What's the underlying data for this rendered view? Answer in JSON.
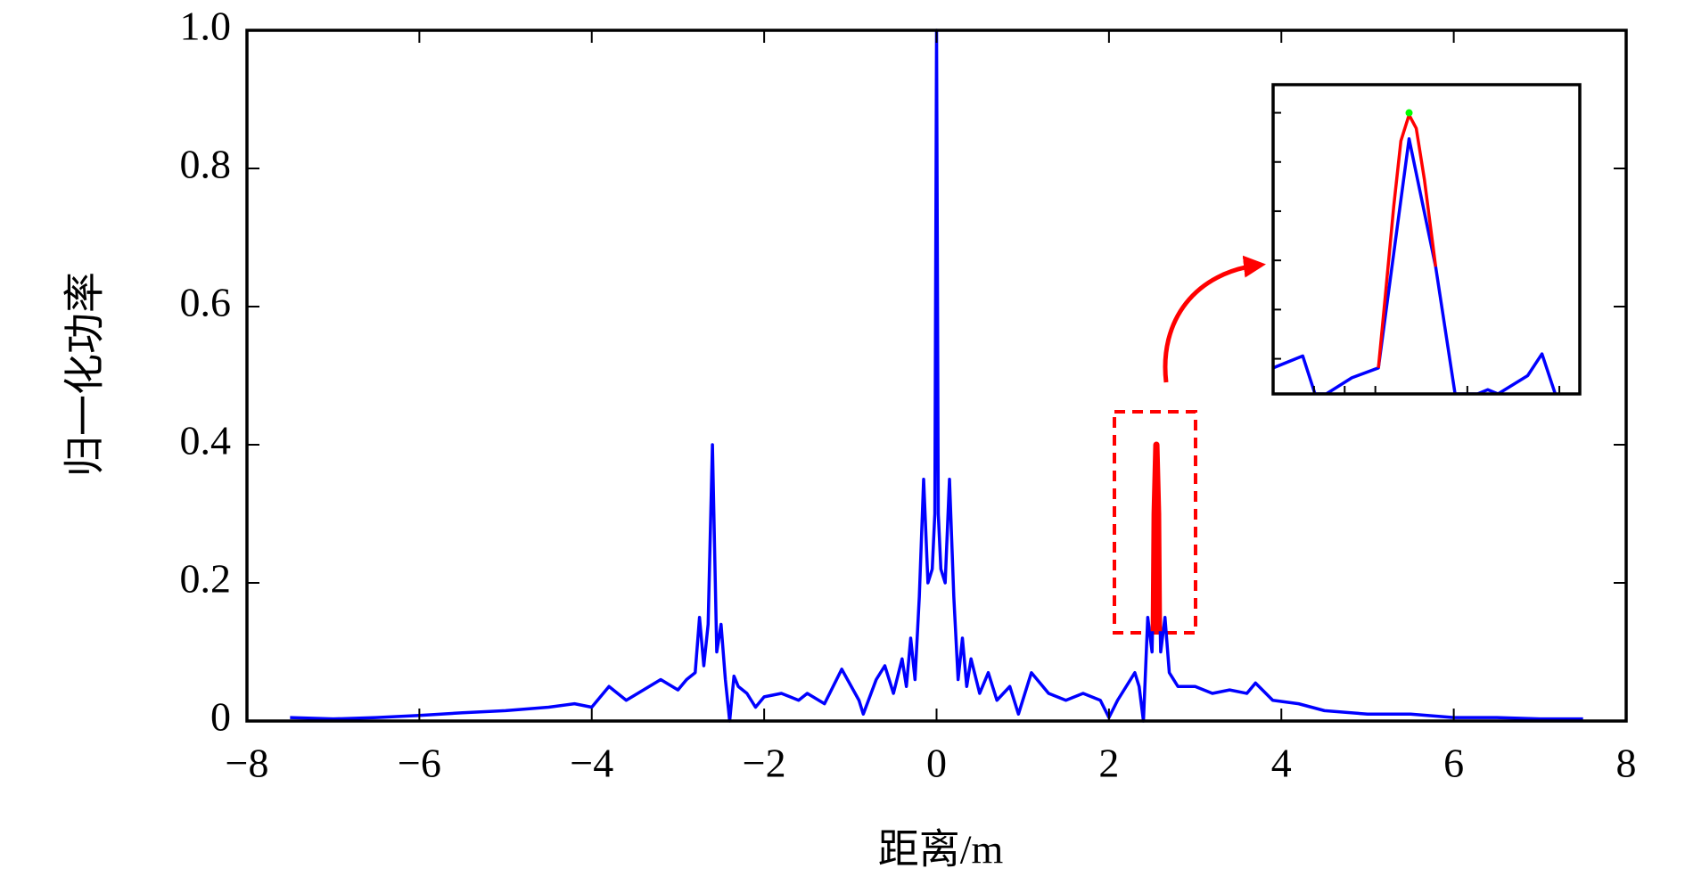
{
  "chart_data": [
    {
      "type": "line",
      "xlabel": "距离/m",
      "ylabel": "归一化功率",
      "xlim": [
        -8,
        8
      ],
      "ylim": [
        0,
        1
      ],
      "xticks": [
        {
          "value": -8,
          "label": "−8"
        },
        {
          "value": -6,
          "label": "−6"
        },
        {
          "value": -4,
          "label": "−4"
        },
        {
          "value": -2,
          "label": "−2"
        },
        0,
        2,
        4,
        6,
        8
      ],
      "yticks": [
        0,
        0.2,
        0.4,
        0.6,
        0.8,
        {
          "value": 1,
          "label": "1.0"
        }
      ],
      "series": [
        {
          "color": "#0000ff",
          "x": [
            -7.5,
            -7,
            -6.5,
            -6,
            -5.5,
            -5,
            -4.5,
            -4.2,
            -4,
            -3.8,
            -3.6,
            -3.4,
            -3.2,
            -3.0,
            -2.9,
            -2.8,
            -2.75,
            -2.7,
            -2.65,
            -2.6,
            -2.55,
            -2.5,
            -2.45,
            -2.4,
            -2.35,
            -2.3,
            -2.2,
            -2.1,
            -2.0,
            -1.8,
            -1.6,
            -1.5,
            -1.3,
            -1.1,
            -0.9,
            -0.85,
            -0.7,
            -0.6,
            -0.5,
            -0.4,
            -0.35,
            -0.3,
            -0.25,
            -0.2,
            -0.15,
            -0.1,
            -0.05,
            -0.02,
            0,
            0.02,
            0.05,
            0.1,
            0.15,
            0.2,
            0.25,
            0.3,
            0.35,
            0.4,
            0.5,
            0.6,
            0.7,
            0.85,
            0.95,
            1.1,
            1.3,
            1.5,
            1.7,
            1.9,
            2.0,
            2.1,
            2.2,
            2.3,
            2.35,
            2.4,
            2.45,
            2.5,
            2.55,
            2.6,
            2.65,
            2.7,
            2.8,
            3.0,
            3.2,
            3.4,
            3.6,
            3.7,
            3.9,
            4.2,
            4.5,
            5,
            5.5,
            6,
            6.5,
            7,
            7.5
          ],
          "values": [
            0.005,
            0.003,
            0.005,
            0.008,
            0.012,
            0.015,
            0.02,
            0.025,
            0.02,
            0.05,
            0.03,
            0.045,
            0.06,
            0.045,
            0.06,
            0.07,
            0.15,
            0.08,
            0.14,
            0.4,
            0.1,
            0.14,
            0.06,
            0.0,
            0.065,
            0.05,
            0.04,
            0.02,
            0.035,
            0.04,
            0.03,
            0.04,
            0.025,
            0.075,
            0.03,
            0.01,
            0.06,
            0.08,
            0.04,
            0.09,
            0.05,
            0.12,
            0.06,
            0.18,
            0.35,
            0.2,
            0.22,
            0.3,
            1.0,
            0.3,
            0.22,
            0.2,
            0.35,
            0.18,
            0.06,
            0.12,
            0.05,
            0.09,
            0.04,
            0.07,
            0.03,
            0.05,
            0.01,
            0.07,
            0.04,
            0.03,
            0.04,
            0.03,
            0.005,
            0.03,
            0.05,
            0.07,
            0.05,
            0.0,
            0.15,
            0.1,
            0.4,
            0.1,
            0.15,
            0.07,
            0.05,
            0.05,
            0.04,
            0.045,
            0.04,
            0.055,
            0.03,
            0.025,
            0.015,
            0.01,
            0.01,
            0.005,
            0.005,
            0.003,
            0.003
          ]
        },
        {
          "color": "#ff0000",
          "x": [
            2.52,
            2.53,
            2.55,
            2.57,
            2.58
          ],
          "values": [
            0.13,
            0.3,
            0.4,
            0.3,
            0.13
          ]
        }
      ]
    },
    {
      "type": "line",
      "xlim": [
        2.4,
        2.7
      ],
      "ylim": [
        0,
        0.44
      ],
      "xticks": [
        2.44,
        2.47,
        2.5,
        2.59,
        2.68
      ],
      "yticks": [
        0.05,
        0.12,
        0.19,
        0.26,
        0.33,
        0.4
      ],
      "series": [
        {
          "color": "#0000ff",
          "x": [
            2.4,
            2.429,
            2.441,
            2.452,
            2.477,
            2.503,
            2.533,
            2.559,
            2.578,
            2.6,
            2.61,
            2.62,
            2.649,
            2.663,
            2.676
          ],
          "values": [
            0.037,
            0.054,
            0,
            0,
            0.023,
            0.037,
            0.363,
            0.181,
            0,
            0,
            0.006,
            0,
            0.026,
            0.057,
            0
          ]
        },
        {
          "color": "#ff0000",
          "x": [
            2.503,
            2.51,
            2.518,
            2.525,
            2.533,
            2.54,
            2.548,
            2.559
          ],
          "values": [
            0.037,
            0.143,
            0.267,
            0.36,
            0.397,
            0.378,
            0.305,
            0.181
          ]
        },
        {
          "color": "#00ff00",
          "x": [
            2.533
          ],
          "values": [
            0.4
          ]
        }
      ]
    }
  ]
}
